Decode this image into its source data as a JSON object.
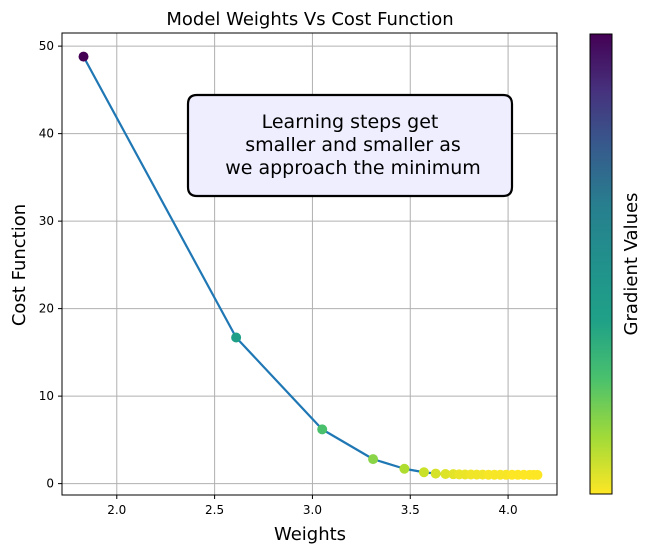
{
  "chart_data": {
    "type": "line",
    "title": "Model Weights Vs Cost Function",
    "xlabel": "Weights",
    "ylabel": "Cost Function",
    "colorbar_label": "Gradient Values",
    "xlim": [
      1.72,
      4.25
    ],
    "ylim": [
      -1.3,
      51.5
    ],
    "xticks": [
      2.0,
      2.5,
      3.0,
      3.5,
      4.0
    ],
    "xtick_labels": [
      "2.0",
      "2.5",
      "3.0",
      "3.5",
      "4.0"
    ],
    "yticks": [
      0,
      10,
      20,
      30,
      40,
      50
    ],
    "ytick_labels": [
      "0",
      "10",
      "20",
      "30",
      "40",
      "50"
    ],
    "grid": true,
    "colormap": "viridis_r",
    "line_color": "#1f77b4",
    "annotation": {
      "lines": [
        "Learning steps get",
        "smaller and smaller as",
        "we approach the minimum"
      ],
      "box_face": "#eeeeff",
      "box_edge": "#000000"
    },
    "series": [
      {
        "x": [
          1.83,
          2.61,
          3.05,
          3.31,
          3.47,
          3.57,
          3.63,
          3.68,
          3.72,
          3.75,
          3.78,
          3.81,
          3.84,
          3.87,
          3.9,
          3.93,
          3.96,
          3.99,
          4.02,
          4.05,
          4.08,
          4.11,
          4.13,
          4.15
        ],
        "y": [
          48.8,
          16.7,
          6.2,
          2.8,
          1.7,
          1.3,
          1.15,
          1.1,
          1.08,
          1.06,
          1.05,
          1.04,
          1.03,
          1.03,
          1.02,
          1.02,
          1.02,
          1.01,
          1.01,
          1.01,
          1.01,
          1.0,
          1.0,
          1.0
        ],
        "gradient_norm": [
          1.0,
          0.44,
          0.29,
          0.18,
          0.12,
          0.08,
          0.06,
          0.05,
          0.04,
          0.03,
          0.03,
          0.02,
          0.02,
          0.02,
          0.01,
          0.01,
          0.01,
          0.01,
          0.0,
          0.0,
          0.0,
          0.0,
          0.0,
          0.0
        ]
      }
    ]
  }
}
